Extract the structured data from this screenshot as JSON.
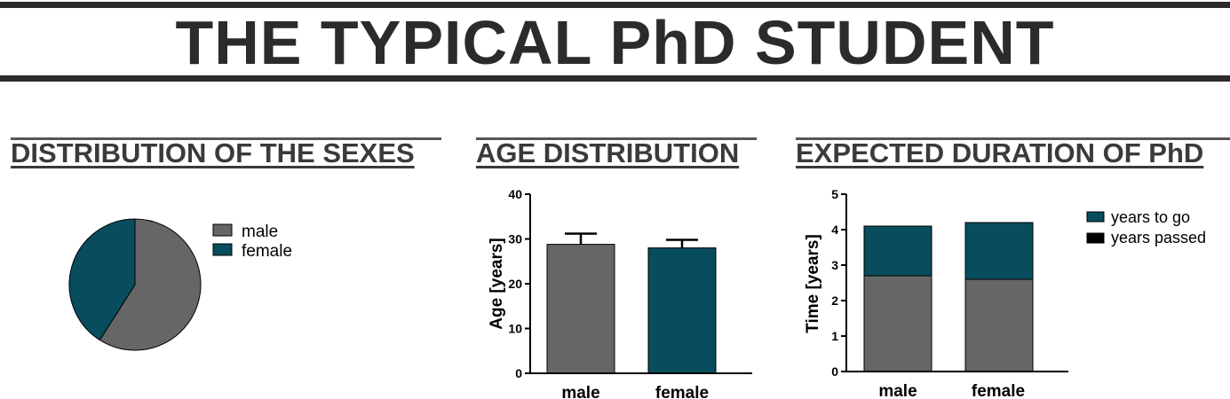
{
  "header": {
    "title": "THE TYPICAL PhD STUDENT"
  },
  "sections": {
    "sexes_title": "DISTRIBUTION OF THE SEXES",
    "age_title": "AGE DISTRIBUTION",
    "duration_title": "EXPECTED DURATION OF PhD"
  },
  "colors": {
    "male": "#666666",
    "female": "#084d5e",
    "years_passed": "#000000"
  },
  "chart_data": [
    {
      "type": "pie",
      "title": "DISTRIBUTION OF THE SEXES",
      "categories": [
        "male",
        "female"
      ],
      "values": [
        59,
        41
      ],
      "legend": [
        "male",
        "female"
      ],
      "legend_position": "right"
    },
    {
      "type": "bar",
      "title": "AGE DISTRIBUTION",
      "categories": [
        "male",
        "female"
      ],
      "values": [
        28.8,
        28.0
      ],
      "error_upper": [
        31.2,
        29.8
      ],
      "ylabel": "Age [years]",
      "ylim": [
        0,
        40
      ],
      "yticks": [
        "0",
        "10",
        "20",
        "30",
        "40"
      ]
    },
    {
      "type": "bar",
      "stacked": true,
      "title": "EXPECTED DURATION OF PhD",
      "categories": [
        "male",
        "female"
      ],
      "series": [
        {
          "name": "years passed",
          "values": [
            2.7,
            2.6
          ]
        },
        {
          "name": "years to go",
          "values": [
            1.4,
            1.6
          ]
        }
      ],
      "legend": [
        "years to go",
        "years passed"
      ],
      "legend_position": "right",
      "ylabel": "Time [years]",
      "ylim": [
        0,
        5
      ],
      "yticks": [
        "0",
        "1",
        "2",
        "3",
        "4",
        "5"
      ]
    }
  ]
}
